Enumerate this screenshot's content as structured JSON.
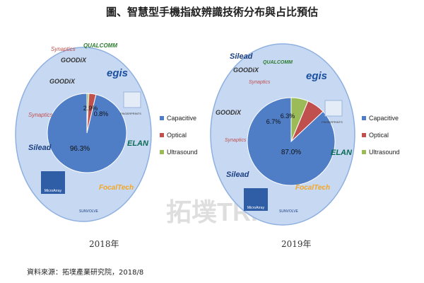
{
  "title": "圖、智慧型手機指紋辨識技術分布與占比預估",
  "source": "資料來源：拓墣產業研究院，2018/8",
  "watermark": "拓墣TRI",
  "colors": {
    "capacitive": "#4f7ec7",
    "optical": "#c0504d",
    "ultrasound": "#9bbb59",
    "outer_ring": "#c7d8f2",
    "outer_ring_edge": "#8eb0e0"
  },
  "brands_2018": [
    "Synaptics",
    "QUALCOMM",
    "GOODiX",
    "egis",
    "FINGERPRINTS",
    "Synaptics",
    "ELAN",
    "Silead",
    "MicroArray",
    "FocalTech",
    "SUNVOLVE"
  ],
  "brands_2019": [
    "Silead",
    "GOODiX",
    "QUALCOMM",
    "egis",
    "Synaptics",
    "GOODiX",
    "FINGERPRINTS",
    "Synaptics",
    "ELAN",
    "Silead",
    "MicroArray",
    "FocalTech",
    "SUNVOLVE"
  ],
  "chart_data": [
    {
      "type": "pie",
      "title": "2018年",
      "categories": [
        "Capacitive",
        "Optical",
        "Ultrasound"
      ],
      "values": [
        96.3,
        2.9,
        0.8
      ],
      "labels": [
        "96.3%",
        "2.9%",
        "0.8%"
      ],
      "legend": "right"
    },
    {
      "type": "pie",
      "title": "2019年",
      "categories": [
        "Capacitive",
        "Optical",
        "Ultrasound"
      ],
      "values": [
        87.0,
        6.7,
        6.3
      ],
      "labels": [
        "87.0%",
        "6.7%",
        "6.3%"
      ],
      "legend": "right"
    }
  ]
}
